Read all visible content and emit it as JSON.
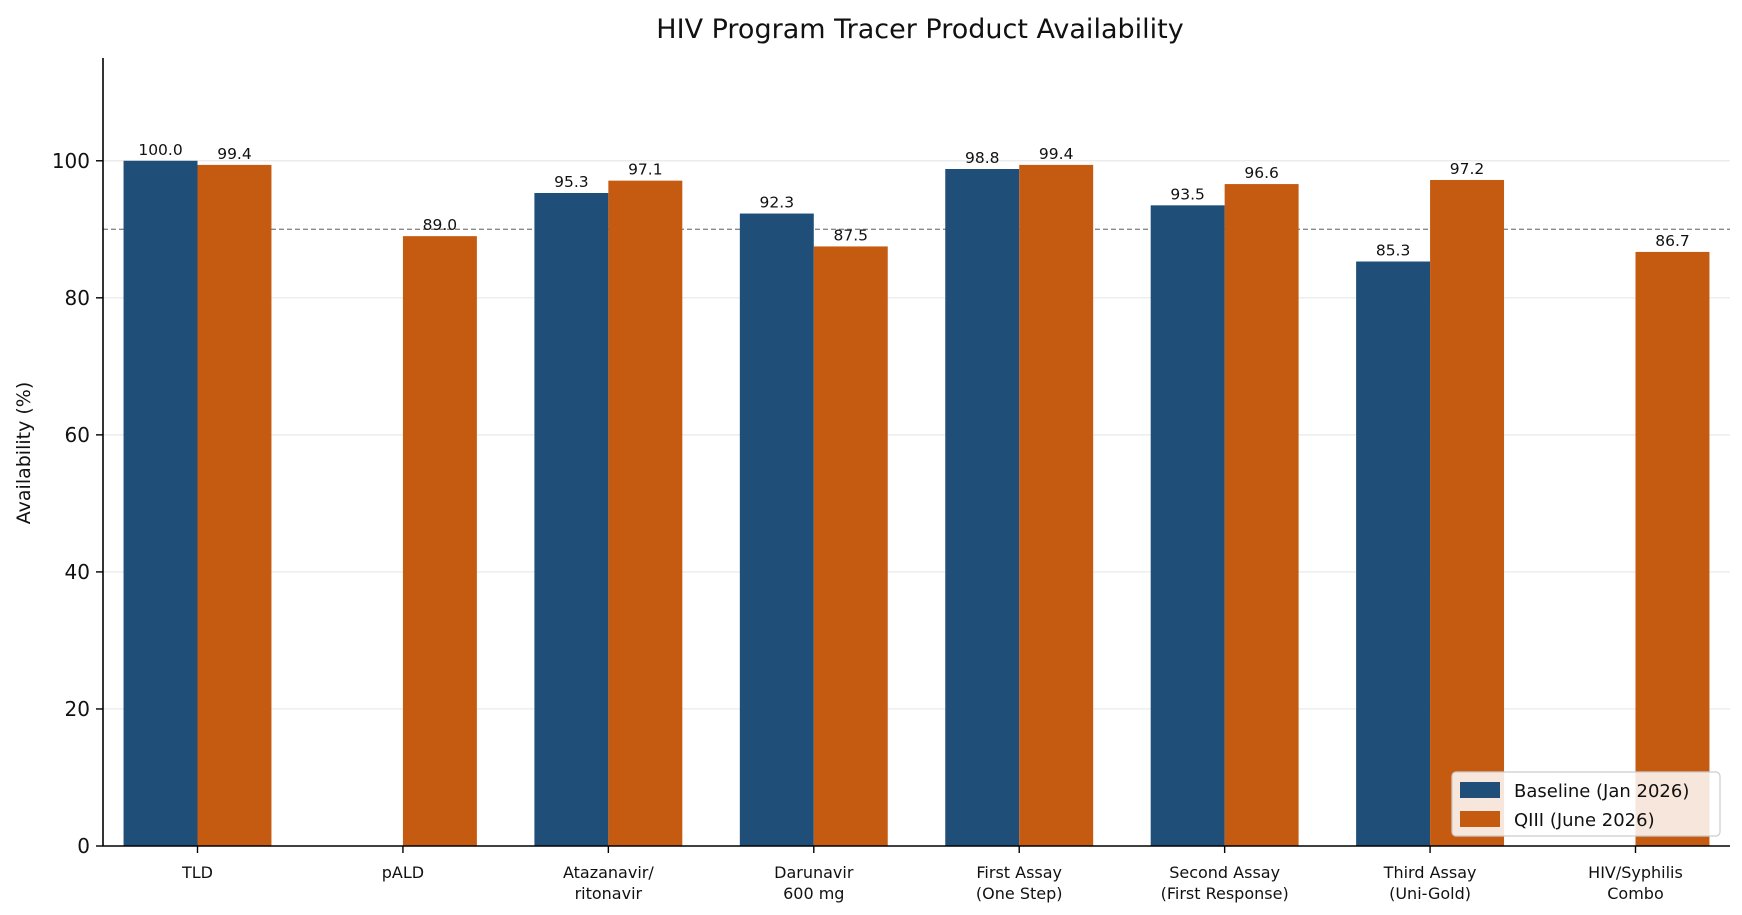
{
  "chart_data": {
    "type": "bar",
    "title": "HIV Program Tracer Product Availability",
    "xlabel": "",
    "ylabel": "Availability (%)",
    "ylim": [
      0,
      115
    ],
    "yticks": [
      0,
      20,
      40,
      60,
      80,
      100
    ],
    "reference_line": 90,
    "grid": "horizontal",
    "legend_position": "lower-right",
    "categories": [
      [
        "TLD"
      ],
      [
        "pALD"
      ],
      [
        "Atazanavir/",
        "ritonavir"
      ],
      [
        "Darunavir",
        "600 mg"
      ],
      [
        "First Assay",
        "(One Step)"
      ],
      [
        "Second Assay",
        "(First Response)"
      ],
      [
        "Third Assay",
        "(Uni-Gold)"
      ],
      [
        "HIV/Syphilis",
        "Combo"
      ]
    ],
    "series": [
      {
        "name": "Baseline (Jan 2026)",
        "color": "#1f4e79",
        "values": [
          100.0,
          null,
          95.3,
          92.3,
          98.8,
          93.5,
          85.3,
          null
        ],
        "labels": [
          "100.0",
          "",
          "95.3",
          "92.3",
          "98.8",
          "93.5",
          "85.3",
          ""
        ]
      },
      {
        "name": "QIII (June 2026)",
        "color": "#c55a11",
        "values": [
          99.4,
          89.0,
          97.1,
          87.5,
          99.4,
          96.6,
          97.2,
          86.7
        ],
        "labels": [
          "99.4",
          "89.0",
          "97.1",
          "87.5",
          "99.4",
          "96.6",
          "97.2",
          "86.7"
        ]
      }
    ]
  }
}
